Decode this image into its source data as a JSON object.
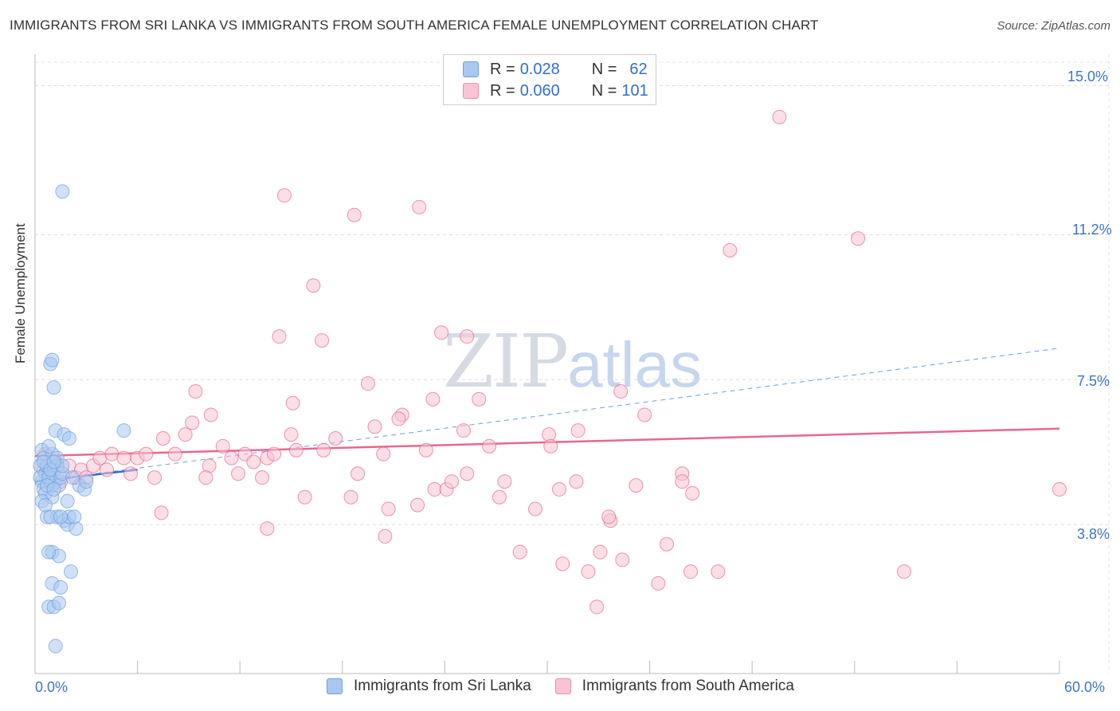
{
  "header": {
    "title": "IMMIGRANTS FROM SRI LANKA VS IMMIGRANTS FROM SOUTH AMERICA FEMALE UNEMPLOYMENT CORRELATION CHART",
    "source": "Source: ZipAtlas.com"
  },
  "watermark": {
    "zip": "ZIP",
    "atlas": "atlas"
  },
  "legend": {
    "rows": [
      {
        "r_label": "R =",
        "r_value": "0.028",
        "n_label": "N =",
        "n_value": "62",
        "color": "#a9c8f0",
        "border": "#6e9fe0"
      },
      {
        "r_label": "R =",
        "r_value": "0.060",
        "n_label": "N =",
        "n_value": "101",
        "color": "#f8c4d3",
        "border": "#ee8fac"
      }
    ]
  },
  "bottom_legend": [
    {
      "label": "Immigrants from Sri Lanka",
      "color": "#a9c8f0",
      "border": "#6e9fe0"
    },
    {
      "label": "Immigrants from South America",
      "color": "#f8c4d3",
      "border": "#ee8fac"
    }
  ],
  "axes": {
    "ylabel": "Female Unemployment",
    "x_tick_labels": {
      "min": "0.0%",
      "max": "60.0%"
    },
    "y_tick_labels": [
      "3.8%",
      "7.5%",
      "11.2%",
      "15.0%"
    ]
  },
  "chart_data": {
    "type": "scatter",
    "title": "IMMIGRANTS FROM SRI LANKA VS IMMIGRANTS FROM SOUTH AMERICA FEMALE UNEMPLOYMENT CORRELATION CHART",
    "xlabel": "",
    "ylabel": "Female Unemployment",
    "xlim": [
      0,
      60
    ],
    "ylim": [
      0,
      15.6
    ],
    "y_ticks": [
      3.8,
      7.5,
      11.2,
      15.0
    ],
    "grid": true,
    "legend_position": "top-center",
    "series": [
      {
        "name": "Immigrants from Sri Lanka",
        "color": "#6e9fe0",
        "fill": "#a9c8f0",
        "stats": {
          "R": 0.028,
          "N": 62
        },
        "trend": {
          "x": [
            0,
            6
          ],
          "y": [
            4.9,
            5.2
          ],
          "extended_x": [
            0,
            60
          ],
          "extended_y": [
            4.9,
            8.3
          ]
        },
        "points": [
          [
            0.4,
            5.7
          ],
          [
            0.5,
            5.5
          ],
          [
            0.3,
            5.3
          ],
          [
            0.6,
            5.1
          ],
          [
            0.4,
            4.9
          ],
          [
            0.5,
            4.7
          ],
          [
            0.7,
            5.3
          ],
          [
            0.8,
            5.1
          ],
          [
            0.9,
            4.9
          ],
          [
            0.6,
            4.6
          ],
          [
            1.0,
            5.6
          ],
          [
            1.1,
            5.2
          ],
          [
            1.2,
            4.9
          ],
          [
            1.4,
            4.8
          ],
          [
            1.0,
            4.5
          ],
          [
            0.3,
            5.0
          ],
          [
            0.5,
            5.4
          ],
          [
            0.8,
            5.0
          ],
          [
            1.3,
            5.3
          ],
          [
            0.7,
            4.8
          ],
          [
            0.9,
            5.2
          ],
          [
            1.5,
            5.0
          ],
          [
            1.6,
            5.1
          ],
          [
            1.1,
            4.7
          ],
          [
            0.4,
            4.4
          ],
          [
            2.6,
            4.8
          ],
          [
            2.9,
            4.7
          ],
          [
            3.0,
            4.9
          ],
          [
            1.3,
            4.0
          ],
          [
            1.7,
            3.9
          ],
          [
            1.9,
            3.8
          ],
          [
            2.0,
            4.0
          ],
          [
            2.4,
            3.7
          ],
          [
            0.7,
            4.0
          ],
          [
            0.9,
            4.0
          ],
          [
            1.5,
            4.0
          ],
          [
            2.3,
            4.0
          ],
          [
            1.0,
            3.1
          ],
          [
            1.4,
            3.0
          ],
          [
            0.8,
            3.1
          ],
          [
            2.1,
            2.6
          ],
          [
            1.0,
            2.3
          ],
          [
            1.5,
            2.2
          ],
          [
            0.8,
            1.7
          ],
          [
            1.1,
            1.7
          ],
          [
            1.4,
            1.8
          ],
          [
            1.2,
            0.7
          ],
          [
            0.9,
            7.9
          ],
          [
            1.0,
            8.0
          ],
          [
            1.1,
            7.3
          ],
          [
            1.2,
            6.2
          ],
          [
            1.7,
            6.1
          ],
          [
            2.0,
            6.0
          ],
          [
            0.8,
            5.8
          ],
          [
            1.3,
            5.5
          ],
          [
            1.6,
            5.3
          ],
          [
            5.2,
            6.2
          ],
          [
            1.6,
            12.3
          ],
          [
            1.9,
            4.4
          ],
          [
            1.1,
            5.4
          ],
          [
            0.6,
            4.3
          ],
          [
            2.2,
            5.0
          ]
        ]
      },
      {
        "name": "Immigrants from South America",
        "color": "#e8678f",
        "fill": "#f8c4d3",
        "stats": {
          "R": 0.06,
          "N": 101
        },
        "trend": {
          "x": [
            0,
            60
          ],
          "y": [
            5.55,
            6.25
          ]
        },
        "points": [
          [
            0.5,
            5.2
          ],
          [
            0.8,
            5.0
          ],
          [
            1.2,
            5.4
          ],
          [
            1.5,
            4.9
          ],
          [
            1.0,
            4.8
          ],
          [
            0.6,
            5.6
          ],
          [
            2.0,
            5.3
          ],
          [
            2.4,
            5.0
          ],
          [
            2.7,
            5.2
          ],
          [
            3.0,
            5.0
          ],
          [
            3.4,
            5.3
          ],
          [
            3.8,
            5.5
          ],
          [
            4.2,
            5.2
          ],
          [
            4.5,
            5.6
          ],
          [
            5.2,
            5.5
          ],
          [
            5.6,
            5.1
          ],
          [
            6.0,
            5.5
          ],
          [
            6.5,
            5.6
          ],
          [
            7.0,
            5.0
          ],
          [
            7.5,
            6.0
          ],
          [
            8.2,
            5.6
          ],
          [
            8.8,
            6.1
          ],
          [
            9.2,
            6.4
          ],
          [
            10.2,
            5.3
          ],
          [
            10.0,
            5.0
          ],
          [
            11.0,
            5.8
          ],
          [
            11.5,
            5.5
          ],
          [
            11.9,
            5.1
          ],
          [
            12.3,
            5.6
          ],
          [
            12.8,
            5.4
          ],
          [
            13.3,
            5.0
          ],
          [
            13.6,
            5.5
          ],
          [
            14.0,
            5.6
          ],
          [
            15.3,
            5.7
          ],
          [
            15.8,
            4.5
          ],
          [
            14.3,
            8.6
          ],
          [
            16.3,
            9.9
          ],
          [
            16.9,
            5.7
          ],
          [
            17.6,
            6.0
          ],
          [
            18.5,
            4.5
          ],
          [
            18.9,
            5.1
          ],
          [
            19.9,
            6.3
          ],
          [
            20.4,
            5.6
          ],
          [
            20.7,
            4.2
          ],
          [
            21.5,
            6.6
          ],
          [
            22.4,
            4.3
          ],
          [
            22.9,
            5.7
          ],
          [
            23.4,
            4.7
          ],
          [
            24.1,
            4.7
          ],
          [
            24.4,
            4.9
          ],
          [
            25.1,
            6.2
          ],
          [
            25.3,
            8.6
          ],
          [
            26.6,
            5.8
          ],
          [
            27.5,
            4.9
          ],
          [
            28.4,
            3.1
          ],
          [
            29.3,
            4.2
          ],
          [
            30.1,
            6.1
          ],
          [
            30.7,
            4.7
          ],
          [
            31.8,
            6.2
          ],
          [
            32.4,
            2.6
          ],
          [
            32.9,
            1.7
          ],
          [
            33.7,
            3.9
          ],
          [
            34.4,
            2.9
          ],
          [
            35.2,
            4.8
          ],
          [
            35.7,
            6.6
          ],
          [
            37.9,
            5.1
          ],
          [
            37.0,
            3.3
          ],
          [
            38.5,
            4.6
          ],
          [
            36.5,
            2.3
          ],
          [
            33.1,
            3.1
          ],
          [
            7.4,
            4.1
          ],
          [
            9.4,
            7.2
          ],
          [
            10.3,
            6.6
          ],
          [
            13.6,
            3.7
          ],
          [
            15.1,
            6.9
          ],
          [
            15.0,
            6.1
          ],
          [
            14.6,
            12.2
          ],
          [
            16.8,
            8.5
          ],
          [
            18.7,
            11.7
          ],
          [
            19.5,
            7.4
          ],
          [
            20.5,
            3.5
          ],
          [
            21.3,
            6.5
          ],
          [
            22.5,
            11.9
          ],
          [
            23.8,
            8.7
          ],
          [
            23.3,
            7.0
          ],
          [
            25.3,
            5.1
          ],
          [
            26.0,
            7.0
          ],
          [
            27.2,
            4.5
          ],
          [
            30.2,
            5.8
          ],
          [
            31.7,
            4.9
          ],
          [
            33.6,
            4.0
          ],
          [
            34.3,
            7.2
          ],
          [
            30.9,
            2.8
          ],
          [
            37.9,
            4.9
          ],
          [
            38.4,
            2.6
          ],
          [
            40.7,
            10.8
          ],
          [
            40.0,
            2.6
          ],
          [
            43.6,
            14.2
          ],
          [
            48.2,
            11.1
          ],
          [
            50.9,
            2.6
          ],
          [
            60.0,
            4.7
          ]
        ]
      }
    ]
  }
}
